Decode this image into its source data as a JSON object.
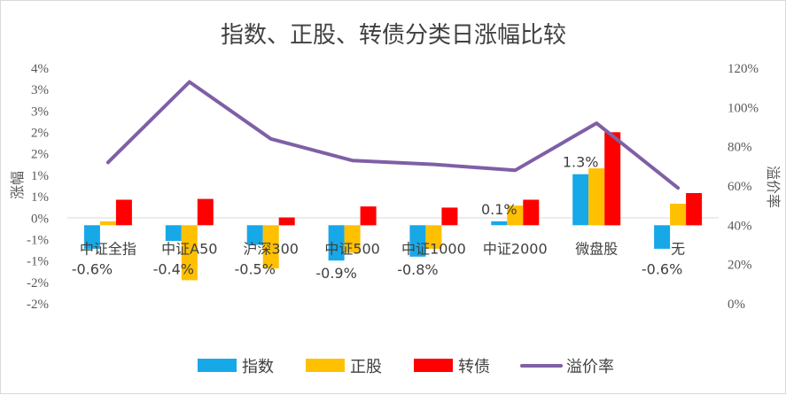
{
  "chart_data": {
    "type": "bar",
    "title": "指数、正股、转债分类日涨幅比较",
    "ylabel": "涨幅",
    "y2label": "溢价率",
    "categories": [
      "中证全指",
      "中证A50",
      "沪深300",
      "中证500",
      "中证1000",
      "中证2000",
      "微盘股",
      "无"
    ],
    "y_tick_labels": [
      "4%",
      "3%",
      "3%",
      "2%",
      "2%",
      "1%",
      "1%",
      "0%",
      "-1%",
      "-1%",
      "-2%",
      "-2%"
    ],
    "ylim": [
      -2.0,
      4.0
    ],
    "y2_tick_labels": [
      "120%",
      "100%",
      "80%",
      "60%",
      "40%",
      "20%",
      "0%"
    ],
    "y2lim": [
      0,
      1.2
    ],
    "series": [
      {
        "name": "指数",
        "kind": "bar",
        "color": "#17a8e8",
        "values": [
          -0.6,
          -0.4,
          -0.5,
          -0.9,
          -0.8,
          0.1,
          1.3,
          -0.6
        ]
      },
      {
        "name": "正股",
        "kind": "bar",
        "color": "#ffc000",
        "values": [
          0.1,
          -1.4,
          -1.1,
          -0.7,
          -0.6,
          0.5,
          1.45,
          0.55
        ]
      },
      {
        "name": "转债",
        "kind": "bar",
        "color": "#ff0000",
        "values": [
          0.65,
          0.67,
          0.2,
          0.48,
          0.45,
          0.65,
          2.37,
          0.82
        ]
      },
      {
        "name": "溢价率",
        "kind": "line",
        "axis": "right",
        "color": "#7f5fa6",
        "values": [
          0.72,
          1.13,
          0.84,
          0.73,
          0.71,
          0.68,
          0.92,
          0.59
        ]
      }
    ],
    "data_labels": [
      "-0.6%",
      "-0.4%",
      "-0.5%",
      "-0.9%",
      "-0.8%",
      "0.1%",
      "1.3%",
      "-0.6%"
    ],
    "legend_position": "bottom",
    "grid": false
  }
}
